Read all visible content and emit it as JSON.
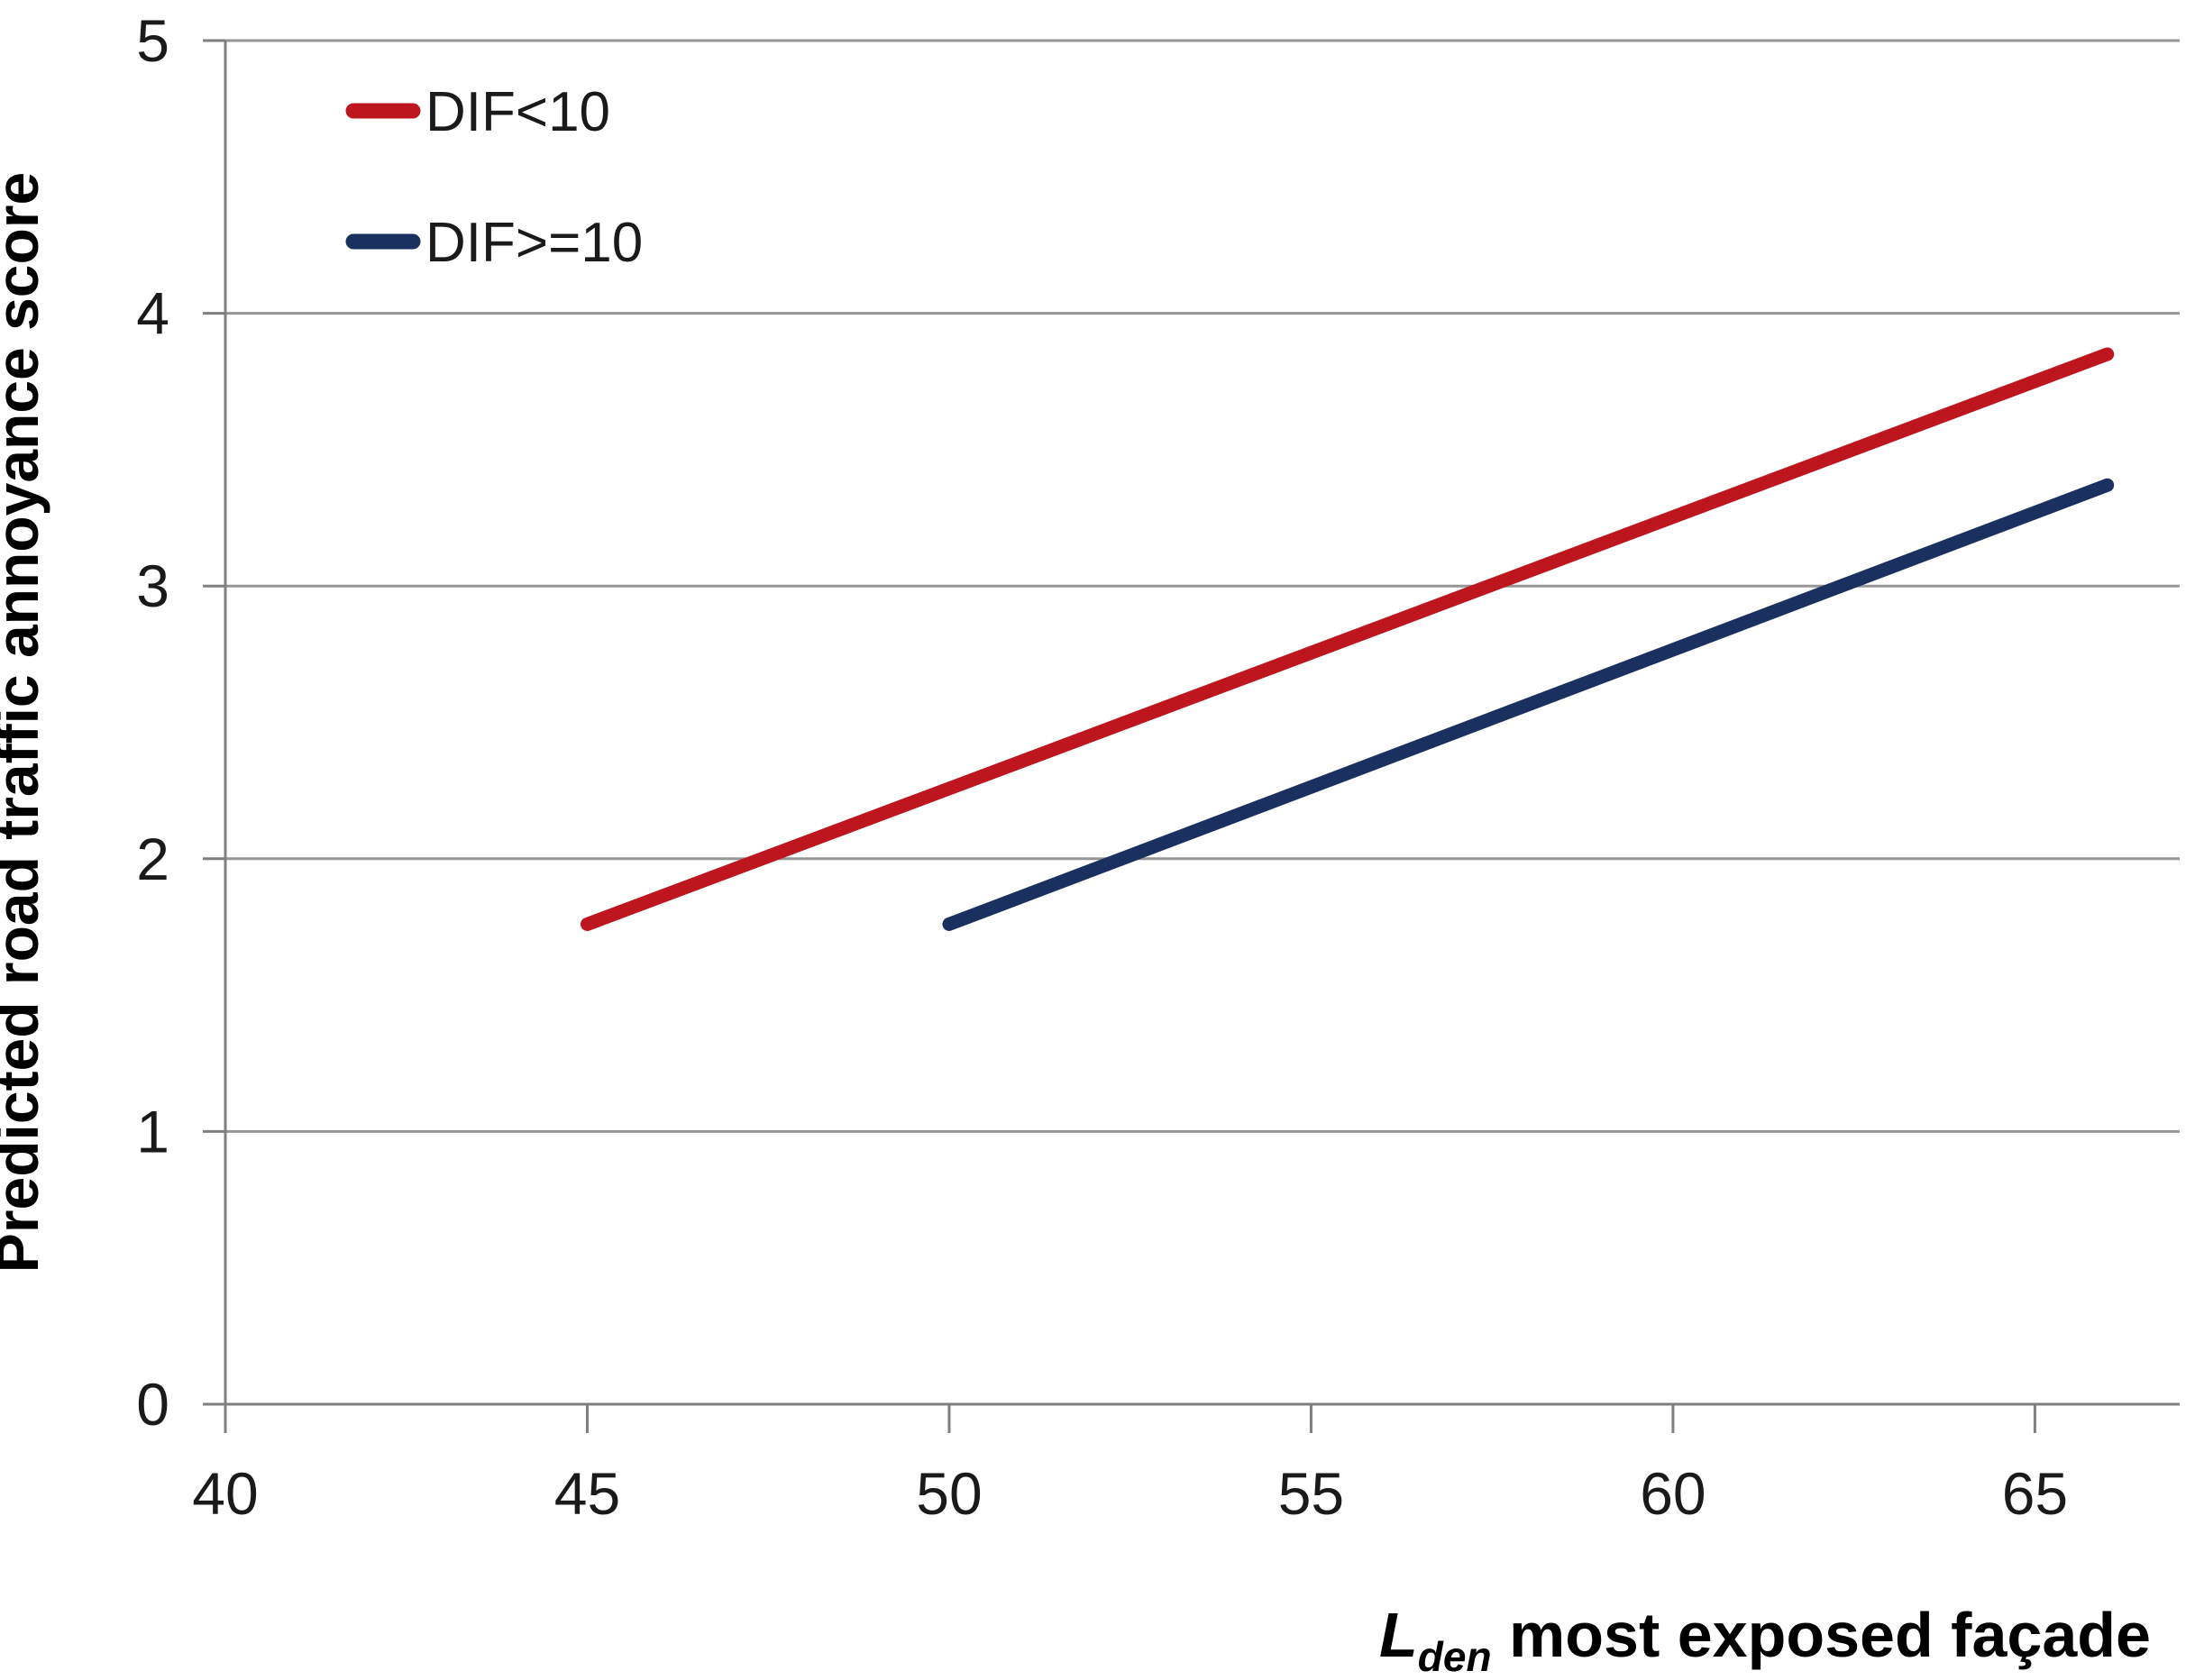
{
  "chart_data": {
    "type": "line",
    "title": "",
    "ylabel": "Predicted road traffic annoyance score",
    "xlabel": "Lden most exposed façade",
    "xlabel_parts": {
      "symbol": "L",
      "subscript": "den",
      "text": " most exposed façade"
    },
    "xlim": [
      40,
      67
    ],
    "ylim": [
      0,
      5
    ],
    "x_ticks": [
      "40",
      "45",
      "50",
      "55",
      "60",
      "65"
    ],
    "x_tick_values": [
      40,
      45,
      50,
      55,
      60,
      65
    ],
    "y_ticks": [
      "0",
      "1",
      "2",
      "3",
      "4",
      "5"
    ],
    "y_tick_values": [
      0,
      1,
      2,
      3,
      4,
      5
    ],
    "grid": "horizontal",
    "legend_position": "top-left-inside",
    "series": [
      {
        "name": "DIF<10",
        "slug": "dif-lt-10",
        "color": "#be161f",
        "x": [
          45,
          66
        ],
        "y": [
          1.76,
          3.85
        ]
      },
      {
        "name": "DIF>=10",
        "slug": "dif-gte-10",
        "color": "#1a3160",
        "x": [
          50,
          66
        ],
        "y": [
          1.76,
          3.37
        ]
      }
    ],
    "colors": {
      "gridline": "#969696",
      "axis": "#7f7f7f",
      "tick_text": "#1a1a1a",
      "title_text": "#000000",
      "background": "#ffffff"
    }
  }
}
